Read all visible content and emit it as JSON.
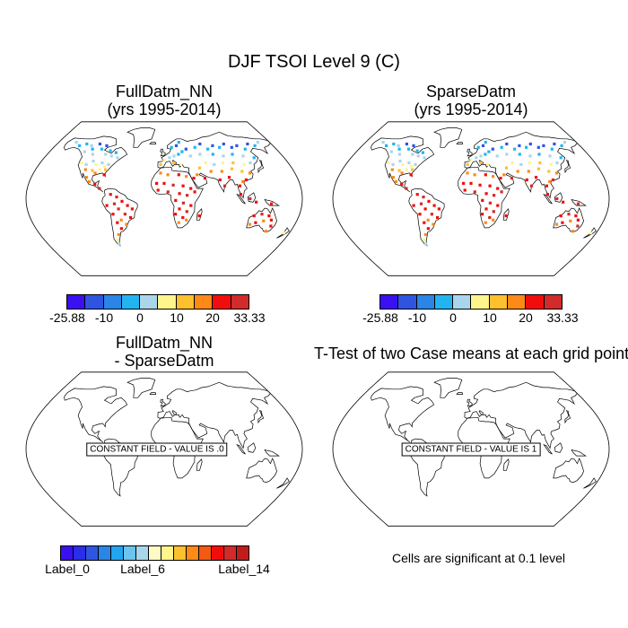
{
  "figure_title": "DJF TSOI Level 9 (C)",
  "panels": [
    {
      "line1": "FullDatm_NN",
      "line2": "(yrs 1995-2014)"
    },
    {
      "line1": "SparseDatm",
      "line2": "(yrs 1995-2014)"
    },
    {
      "line1": "FullDatm_NN",
      "line2": "- SparseDatm",
      "constant_field": "CONSTANT FIELD - VALUE IS .0"
    },
    {
      "line1": "T-Test of two Case means at each grid point",
      "constant_field": "CONSTANT FIELD - VALUE IS 1"
    }
  ],
  "colorbar_abs": {
    "colors": [
      "#3a10f0",
      "#2f55e0",
      "#2a85e6",
      "#22b4f0",
      "#a9d6ea",
      "#fff58a",
      "#fdc02e",
      "#fd8a17",
      "#f20d0d",
      "#d12b2b"
    ],
    "labels": [
      "-25.88",
      "-10",
      "0",
      "10",
      "20",
      "33.33"
    ]
  },
  "colorbar_diff": {
    "colors": [
      "#3a10f0",
      "#2a2ee8",
      "#2f55e0",
      "#2a85e6",
      "#22a4f0",
      "#6cc3ee",
      "#a9d6ea",
      "#fff9c4",
      "#fff58a",
      "#fdc02e",
      "#fd8a17",
      "#f45a10",
      "#f20d0d",
      "#d12b2b",
      "#c21b1b"
    ],
    "labels": [
      "Label_0",
      "Label_6",
      "Label_14"
    ]
  },
  "significance_note": "Cells are significant at 0.1 level",
  "icons": {
    "map": "world-map-icon",
    "station": "station-dot-icon"
  }
}
